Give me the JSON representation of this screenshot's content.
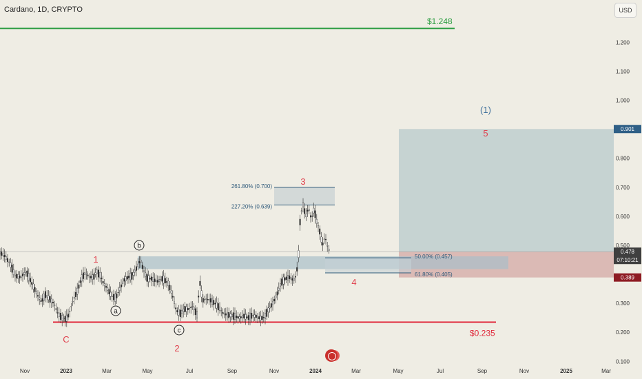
{
  "header": {
    "title": "Cardano, 1D, CRYPTO",
    "currency_button": "USD"
  },
  "colors": {
    "background": "#efede4",
    "candle": "#2b2b2b",
    "wave_red": "#e0404d",
    "wave_blue": "#3b6d9a",
    "green_level": "#2e9e43",
    "red_level": "#e0283a",
    "target_zone": "#b8c9cc",
    "stop_zone": "#d7b0ad",
    "fib_zone": "#a9bfc9"
  },
  "chart_data": {
    "type": "candlestick",
    "title": "Cardano, 1D, CRYPTO",
    "currency": "USD",
    "xaxis_ticks": [
      "Nov",
      "2023",
      "Mar",
      "May",
      "Jul",
      "Sep",
      "Nov",
      "2024",
      "Mar",
      "May",
      "Jul",
      "Sep",
      "Nov",
      "2025",
      "Mar"
    ],
    "yaxis_ticks": [
      "1.200",
      "1.100",
      "1.000",
      "0.800",
      "0.700",
      "0.600",
      "0.500",
      "0.300",
      "0.200",
      "0.100"
    ],
    "price_path": [
      [
        0,
        0.475
      ],
      [
        6,
        0.465
      ],
      [
        14,
        0.44
      ],
      [
        22,
        0.395
      ],
      [
        30,
        0.39
      ],
      [
        38,
        0.41
      ],
      [
        46,
        0.37
      ],
      [
        54,
        0.33
      ],
      [
        60,
        0.305
      ],
      [
        66,
        0.33
      ],
      [
        72,
        0.315
      ],
      [
        78,
        0.3
      ],
      [
        84,
        0.265
      ],
      [
        90,
        0.25
      ],
      [
        96,
        0.245
      ],
      [
        100,
        0.262
      ],
      [
        106,
        0.31
      ],
      [
        112,
        0.34
      ],
      [
        118,
        0.385
      ],
      [
        124,
        0.405
      ],
      [
        130,
        0.39
      ],
      [
        136,
        0.39
      ],
      [
        140,
        0.41
      ],
      [
        146,
        0.395
      ],
      [
        150,
        0.37
      ],
      [
        156,
        0.35
      ],
      [
        162,
        0.325
      ],
      [
        168,
        0.318
      ],
      [
        174,
        0.35
      ],
      [
        180,
        0.38
      ],
      [
        186,
        0.39
      ],
      [
        192,
        0.395
      ],
      [
        198,
        0.42
      ],
      [
        204,
        0.45
      ],
      [
        208,
        0.415
      ],
      [
        214,
        0.385
      ],
      [
        220,
        0.385
      ],
      [
        228,
        0.375
      ],
      [
        236,
        0.385
      ],
      [
        244,
        0.37
      ],
      [
        250,
        0.33
      ],
      [
        256,
        0.275
      ],
      [
        262,
        0.265
      ],
      [
        268,
        0.28
      ],
      [
        274,
        0.28
      ],
      [
        280,
        0.29
      ],
      [
        286,
        0.26
      ],
      [
        290,
        0.375
      ],
      [
        294,
        0.31
      ],
      [
        300,
        0.315
      ],
      [
        306,
        0.31
      ],
      [
        312,
        0.3
      ],
      [
        318,
        0.285
      ],
      [
        324,
        0.265
      ],
      [
        330,
        0.26
      ],
      [
        336,
        0.258
      ],
      [
        342,
        0.254
      ],
      [
        348,
        0.25
      ],
      [
        354,
        0.256
      ],
      [
        360,
        0.25
      ],
      [
        366,
        0.258
      ],
      [
        372,
        0.255
      ],
      [
        378,
        0.248
      ],
      [
        384,
        0.252
      ],
      [
        390,
        0.28
      ],
      [
        396,
        0.3
      ],
      [
        402,
        0.33
      ],
      [
        408,
        0.37
      ],
      [
        414,
        0.385
      ],
      [
        420,
        0.39
      ],
      [
        426,
        0.38
      ],
      [
        430,
        0.395
      ],
      [
        433,
        0.45
      ],
      [
        436,
        0.6
      ],
      [
        440,
        0.64
      ],
      [
        444,
        0.6
      ],
      [
        448,
        0.63
      ],
      [
        452,
        0.59
      ],
      [
        456,
        0.625
      ],
      [
        460,
        0.58
      ],
      [
        464,
        0.55
      ],
      [
        468,
        0.5
      ],
      [
        472,
        0.53
      ],
      [
        476,
        0.49
      ],
      [
        479,
        0.478
      ]
    ],
    "horizontal_levels": [
      {
        "label": "$1.248",
        "price": 1.248,
        "color": "#2e9e43"
      },
      {
        "label": "$0.235",
        "price": 0.235,
        "color": "#e0283a"
      }
    ],
    "fib_levels": [
      {
        "label": "261.80% (0.700)",
        "price": 0.7
      },
      {
        "label": "227.20% (0.639)",
        "price": 0.639
      },
      {
        "label": "50.00% (0.457)",
        "price": 0.457
      },
      {
        "label": "61.80% (0.405)",
        "price": 0.405
      }
    ],
    "price_tags": [
      {
        "text": "0.901",
        "price": 0.901,
        "color": "#2f5f86"
      },
      {
        "text": "0.478",
        "sub": "07:10:21",
        "price": 0.478,
        "color": "#3f3f3f"
      },
      {
        "text": "0.389",
        "price": 0.389,
        "color": "#8e1b23"
      }
    ],
    "wave_labels": [
      {
        "text": "C",
        "color": "#e0404d"
      },
      {
        "text": "1",
        "color": "#e0404d"
      },
      {
        "text": "2",
        "color": "#e0404d"
      },
      {
        "text": "3",
        "color": "#e0404d"
      },
      {
        "text": "4",
        "color": "#e0404d"
      },
      {
        "text": "5",
        "color": "#e0404d"
      },
      {
        "text": "(1)",
        "color": "#3b6d9a"
      },
      {
        "text": "a",
        "color": "#222"
      },
      {
        "text": "b",
        "color": "#222"
      },
      {
        "text": "c",
        "color": "#222"
      }
    ]
  }
}
